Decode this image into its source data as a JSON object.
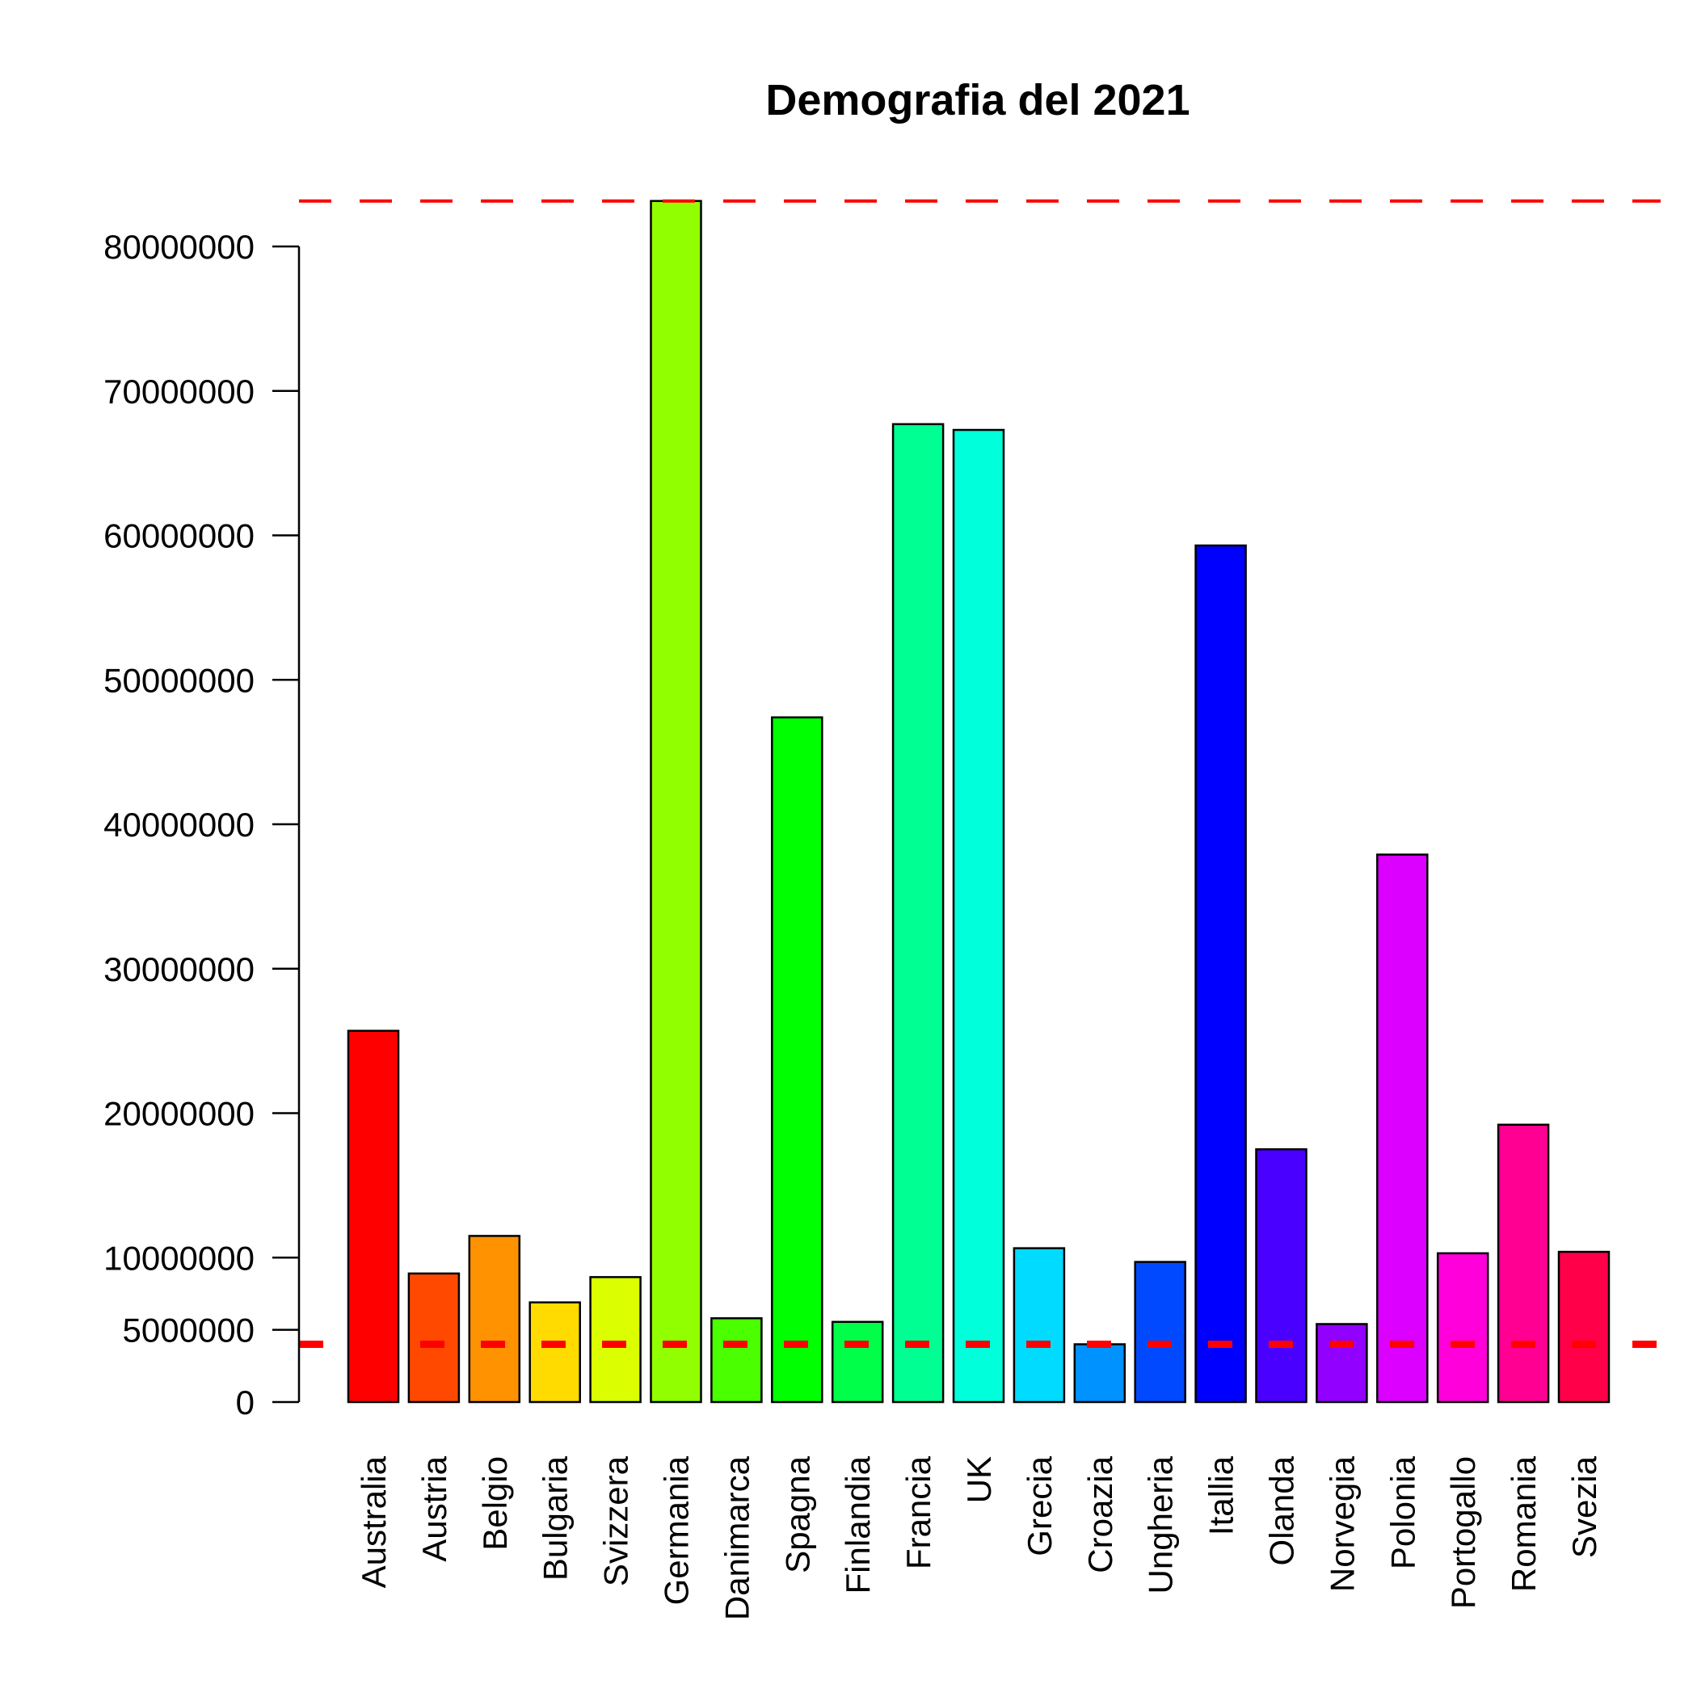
{
  "chart_data": {
    "type": "bar",
    "title": "Demografia del 2021",
    "xlabel": "",
    "ylabel": "",
    "ylim": [
      0,
      83200000
    ],
    "yticks": [
      0,
      5000000,
      10000000,
      20000000,
      30000000,
      40000000,
      50000000,
      60000000,
      70000000,
      80000000
    ],
    "ytick_labels": [
      "0",
      "5000000",
      "10000000",
      "20000000",
      "30000000",
      "40000000",
      "50000000",
      "60000000",
      "70000000",
      "80000000"
    ],
    "grid": false,
    "legend": "none",
    "categories": [
      "Australia",
      "Austria",
      "Belgio",
      "Bulgaria",
      "Svizzera",
      "Germania",
      "Danimarca",
      "Spagna",
      "Finlandia",
      "Francia",
      "UK",
      "Grecia",
      "Croazia",
      "Ungheria",
      "Itallia",
      "Olanda",
      "Norvegia",
      "Polonia",
      "Portogallo",
      "Romania",
      "Svezia"
    ],
    "values": [
      25700000,
      8900000,
      11500000,
      6900000,
      8650000,
      83150000,
      5800000,
      47400000,
      5550000,
      67700000,
      67300000,
      10650000,
      4000000,
      9700000,
      59300000,
      17500000,
      5400000,
      37900000,
      10300000,
      19200000,
      10400000
    ],
    "colors": [
      "#FF0000",
      "#FF4900",
      "#FF9200",
      "#FFDB00",
      "#DBFF00",
      "#92FF00",
      "#49FF00",
      "#00FF00",
      "#00FF49",
      "#00FF92",
      "#00FFDB",
      "#00DBFF",
      "#0092FF",
      "#0049FF",
      "#0000FF",
      "#4900FF",
      "#9200FF",
      "#DB00FF",
      "#FF00DB",
      "#FF0092",
      "#FF0049"
    ],
    "reference_lines": [
      {
        "value": 83150000,
        "color": "#FF0000",
        "style": "dashed"
      },
      {
        "value": 4000000,
        "color": "#FF0000",
        "style": "dashed"
      }
    ]
  }
}
